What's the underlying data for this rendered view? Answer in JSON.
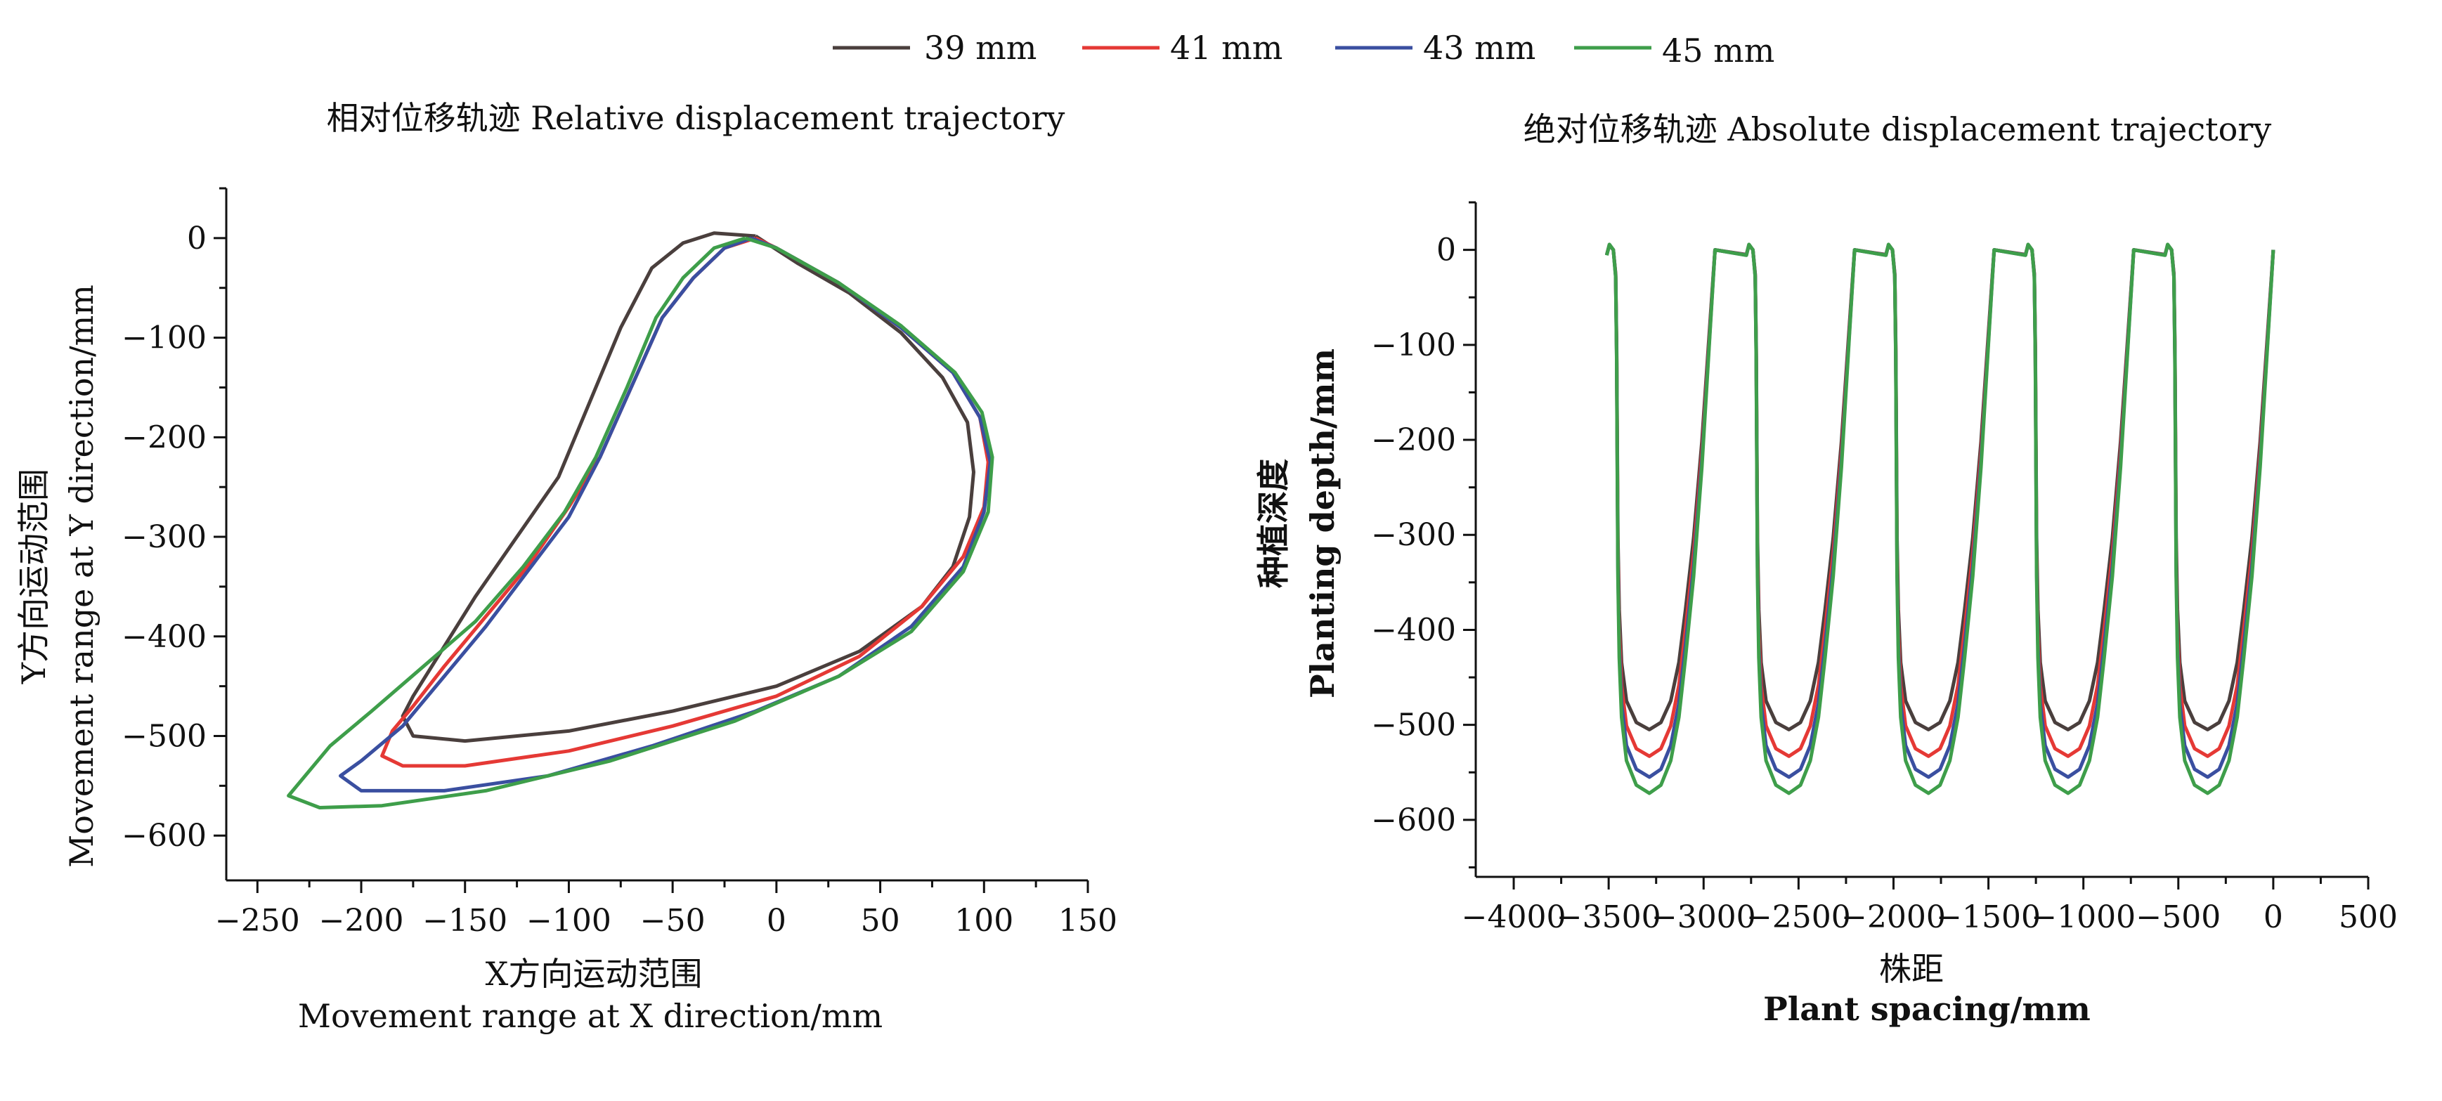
{
  "legend": {
    "items": [
      {
        "label": "39 mm",
        "color": "#4a3f3d"
      },
      {
        "label": "41 mm",
        "color": "#e53935"
      },
      {
        "label": "43 mm",
        "color": "#3a4fa0"
      },
      {
        "label": "45 mm",
        "color": "#3e9e4a"
      }
    ]
  },
  "chart_data": [
    {
      "type": "line",
      "title": "相对位移轨迹 Relative displacement trajectory",
      "xlabel_cn": "X方向运动范围",
      "xlabel": "Movement range at X direction/mm",
      "ylabel_cn": "Y方向运动范围",
      "ylabel": "Movement range at Y direction/mm",
      "xlim": [
        -265,
        150
      ],
      "ylim": [
        -645,
        50
      ],
      "xticks": [
        -250,
        -200,
        -150,
        -100,
        -50,
        0,
        50,
        100,
        150
      ],
      "yticks": [
        0,
        -100,
        -200,
        -300,
        -400,
        -500,
        -600
      ],
      "xtick_labels": [
        "−250",
        "−200",
        "−150",
        "−100",
        "−50",
        "0",
        "50",
        "100",
        "150"
      ],
      "ytick_labels": [
        "0",
        "−100",
        "−200",
        "−300",
        "−400",
        "−500",
        "−600"
      ],
      "series": [
        {
          "name": "39 mm",
          "color": "#4a3f3d",
          "points": [
            [
              -10,
              2
            ],
            [
              -30,
              5
            ],
            [
              -45,
              -5
            ],
            [
              -60,
              -30
            ],
            [
              -75,
              -90
            ],
            [
              -90,
              -165
            ],
            [
              -105,
              -240
            ],
            [
              -125,
              -300
            ],
            [
              -145,
              -360
            ],
            [
              -160,
              -410
            ],
            [
              -175,
              -460
            ],
            [
              -180,
              -480
            ],
            [
              -175,
              -500
            ],
            [
              -150,
              -505
            ],
            [
              -100,
              -495
            ],
            [
              -50,
              -475
            ],
            [
              0,
              -450
            ],
            [
              40,
              -415
            ],
            [
              70,
              -370
            ],
            [
              85,
              -330
            ],
            [
              93,
              -280
            ],
            [
              95,
              -235
            ],
            [
              92,
              -185
            ],
            [
              80,
              -140
            ],
            [
              60,
              -95
            ],
            [
              35,
              -55
            ],
            [
              10,
              -25
            ],
            [
              -10,
              2
            ]
          ]
        },
        {
          "name": "41 mm",
          "color": "#e53935",
          "points": [
            [
              -10,
              0
            ],
            [
              -25,
              -10
            ],
            [
              -40,
              -40
            ],
            [
              -55,
              -80
            ],
            [
              -70,
              -150
            ],
            [
              -85,
              -220
            ],
            [
              -100,
              -270
            ],
            [
              -120,
              -330
            ],
            [
              -140,
              -380
            ],
            [
              -160,
              -430
            ],
            [
              -175,
              -470
            ],
            [
              -185,
              -495
            ],
            [
              -190,
              -520
            ],
            [
              -180,
              -530
            ],
            [
              -150,
              -530
            ],
            [
              -100,
              -515
            ],
            [
              -50,
              -490
            ],
            [
              0,
              -460
            ],
            [
              40,
              -420
            ],
            [
              70,
              -370
            ],
            [
              90,
              -320
            ],
            [
              100,
              -270
            ],
            [
              102,
              -225
            ],
            [
              98,
              -180
            ],
            [
              85,
              -135
            ],
            [
              60,
              -90
            ],
            [
              30,
              -45
            ],
            [
              0,
              -10
            ],
            [
              -10,
              0
            ]
          ]
        },
        {
          "name": "43 mm",
          "color": "#3a4fa0",
          "points": [
            [
              -12,
              0
            ],
            [
              -25,
              -10
            ],
            [
              -40,
              -40
            ],
            [
              -55,
              -80
            ],
            [
              -70,
              -150
            ],
            [
              -85,
              -220
            ],
            [
              -100,
              -280
            ],
            [
              -120,
              -335
            ],
            [
              -140,
              -390
            ],
            [
              -160,
              -440
            ],
            [
              -180,
              -490
            ],
            [
              -200,
              -525
            ],
            [
              -210,
              -540
            ],
            [
              -200,
              -555
            ],
            [
              -160,
              -555
            ],
            [
              -110,
              -540
            ],
            [
              -60,
              -510
            ],
            [
              -10,
              -475
            ],
            [
              30,
              -440
            ],
            [
              65,
              -390
            ],
            [
              90,
              -330
            ],
            [
              100,
              -275
            ],
            [
              103,
              -225
            ],
            [
              98,
              -180
            ],
            [
              85,
              -135
            ],
            [
              60,
              -90
            ],
            [
              30,
              -45
            ],
            [
              0,
              -10
            ],
            [
              -12,
              0
            ]
          ]
        },
        {
          "name": "45 mm",
          "color": "#3e9e4a",
          "points": [
            [
              -15,
              0
            ],
            [
              -30,
              -10
            ],
            [
              -45,
              -40
            ],
            [
              -58,
              -80
            ],
            [
              -72,
              -150
            ],
            [
              -87,
              -220
            ],
            [
              -102,
              -275
            ],
            [
              -122,
              -330
            ],
            [
              -145,
              -385
            ],
            [
              -170,
              -430
            ],
            [
              -195,
              -475
            ],
            [
              -215,
              -510
            ],
            [
              -235,
              -560
            ],
            [
              -220,
              -572
            ],
            [
              -190,
              -570
            ],
            [
              -140,
              -555
            ],
            [
              -80,
              -525
            ],
            [
              -20,
              -485
            ],
            [
              30,
              -440
            ],
            [
              65,
              -395
            ],
            [
              90,
              -335
            ],
            [
              102,
              -275
            ],
            [
              104,
              -220
            ],
            [
              99,
              -175
            ],
            [
              86,
              -135
            ],
            [
              60,
              -88
            ],
            [
              30,
              -45
            ],
            [
              0,
              -10
            ],
            [
              -15,
              0
            ]
          ]
        }
      ]
    },
    {
      "type": "line",
      "title": "绝对位移轨迹 Absolute displacement trajectory",
      "xlabel_cn": "株距",
      "xlabel": "Plant spacing/mm",
      "ylabel_cn": "种植深度",
      "ylabel": "Planting depth/mm",
      "xlim": [
        -4200,
        500
      ],
      "ylim": [
        -660,
        50
      ],
      "xticks": [
        -4000,
        -3500,
        -3000,
        -2500,
        -2000,
        -1500,
        -1000,
        -500,
        0,
        500
      ],
      "yticks": [
        0,
        -100,
        -200,
        -300,
        -400,
        -500,
        -600
      ],
      "xtick_labels": [
        "−4000",
        "−3500",
        "−3000",
        "−2500",
        "−2000",
        "−1500",
        "−1000",
        "−500",
        "0",
        "500"
      ],
      "ytick_labels": [
        "0",
        "−100",
        "−200",
        "−300",
        "−400",
        "−500",
        "−600"
      ],
      "cycle_spacing": 735,
      "cycles": 5,
      "series": [
        {
          "name": "39 mm",
          "color": "#4a3f3d",
          "min_depth": -505
        },
        {
          "name": "41 mm",
          "color": "#e53935",
          "min_depth": -533
        },
        {
          "name": "43 mm",
          "color": "#3a4fa0",
          "min_depth": -555
        },
        {
          "name": "45 mm",
          "color": "#3e9e4a",
          "min_depth": -572
        }
      ]
    }
  ]
}
